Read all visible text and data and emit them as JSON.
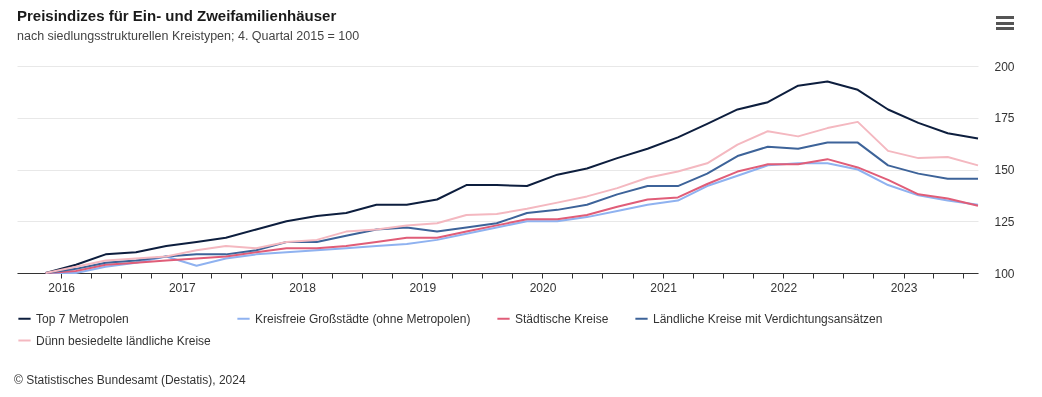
{
  "chart_data": {
    "type": "line",
    "title": "Preisindizes für Ein- und Zweifamilienhäuser",
    "subtitle": "nach siedlungsstrukturellen Kreistypen; 4. Quartal 2015 = 100",
    "x": [
      "2015-11-15",
      "2016-02-15",
      "2016-05-15",
      "2016-08-15",
      "2016-11-15",
      "2017-02-15",
      "2017-05-15",
      "2017-08-15",
      "2017-11-15",
      "2018-02-15",
      "2018-05-15",
      "2018-08-15",
      "2018-11-15",
      "2019-02-15",
      "2019-05-15",
      "2019-08-15",
      "2019-11-15",
      "2020-02-15",
      "2020-05-15",
      "2020-08-15",
      "2020-11-15",
      "2021-02-15",
      "2021-05-15",
      "2021-08-15",
      "2021-11-15",
      "2022-02-15",
      "2022-05-15",
      "2022-08-15",
      "2022-11-15",
      "2023-02-15",
      "2023-05-15",
      "2023-08-15"
    ],
    "series": [
      {
        "name": "Top 7 Metropolen",
        "color": "#0d1e3e",
        "values": [
          100,
          104,
          109,
          110,
          113,
          115,
          117,
          121,
          125,
          127.5,
          129,
          133,
          133,
          135.5,
          142.5,
          142.5,
          142,
          147.5,
          150.5,
          155.5,
          160,
          165.5,
          172,
          179,
          182.5,
          190.5,
          192.5,
          188.5,
          179,
          172.5,
          167.5,
          165
        ]
      },
      {
        "name": "Kreisfreie Großstädte (ohne Metropolen)",
        "color": "#8fb2f0",
        "values": [
          100,
          100,
          103,
          105,
          108,
          103.5,
          107,
          109,
          110,
          111,
          112,
          113,
          114,
          116,
          119,
          122,
          125,
          125,
          127,
          130,
          133,
          135,
          142,
          147,
          152,
          153,
          153,
          150,
          142.5,
          137.5,
          135,
          133
        ]
      },
      {
        "name": "Städtische Kreise",
        "color": "#e05d78",
        "values": [
          100,
          101,
          104,
          105,
          106,
          107,
          108,
          110,
          112,
          112,
          113,
          115,
          117,
          117,
          120,
          123,
          126,
          126,
          128,
          132,
          135.5,
          136.5,
          143,
          149,
          152.5,
          152.5,
          155,
          151,
          145,
          138,
          136,
          132.5
        ]
      },
      {
        "name": "Ländliche Kreise mit Verdichtungsansätzen",
        "color": "#3d6399",
        "values": [
          100,
          102,
          105,
          106,
          108,
          109,
          109,
          111,
          115,
          115,
          118,
          121,
          122,
          120,
          122,
          124,
          129,
          130.5,
          133,
          138,
          142,
          142,
          148,
          156.5,
          161,
          160,
          163,
          163,
          152,
          148,
          145.5,
          145.5
        ]
      },
      {
        "name": "Dünn besiedelte ländliche Kreise",
        "color": "#f4b8c0",
        "values": [
          100,
          103,
          106,
          107,
          108,
          111,
          113,
          112,
          115,
          116,
          120,
          121,
          123,
          124,
          128,
          128.5,
          131,
          134,
          137,
          141,
          146,
          149,
          153,
          162,
          168.5,
          166,
          170,
          173,
          159,
          155.5,
          156,
          152
        ]
      }
    ],
    "xlim": [
      "2015-08-20",
      "2023-08-15"
    ],
    "xticks": [
      "2016",
      {
        "value": "2016-04",
        "label": null
      },
      {
        "value": "2016-07",
        "label": null
      },
      {
        "value": "2016-10",
        "label": null
      },
      "2017",
      {
        "value": "2017-04",
        "label": null
      },
      {
        "value": "2017-07",
        "label": null
      },
      {
        "value": "2017-10",
        "label": null
      },
      "2018",
      {
        "value": "2018-04",
        "label": null
      },
      {
        "value": "2018-07",
        "label": null
      },
      {
        "value": "2018-10",
        "label": null
      },
      "2019",
      {
        "value": "2019-04",
        "label": null
      },
      {
        "value": "2019-07",
        "label": null
      },
      {
        "value": "2019-10",
        "label": null
      },
      "2020",
      {
        "value": "2020-04",
        "label": null
      },
      {
        "value": "2020-07",
        "label": null
      },
      {
        "value": "2020-10",
        "label": null
      },
      "2021",
      {
        "value": "2021-04",
        "label": null
      },
      {
        "value": "2021-07",
        "label": null
      },
      {
        "value": "2021-10",
        "label": null
      },
      "2022",
      {
        "value": "2022-04",
        "label": null
      },
      {
        "value": "2022-07",
        "label": null
      },
      {
        "value": "2022-10",
        "label": null
      },
      "2023",
      {
        "value": "2023-04",
        "label": null
      },
      {
        "value": "2023-07",
        "label": null
      }
    ],
    "ylim": [
      100,
      200
    ],
    "yticks": [
      100,
      125,
      150,
      175,
      200
    ],
    "grid": "y",
    "legend": "bottom",
    "line_style": "solid",
    "annotations": [
      "© Statistisches Bundesamt (Destatis), 2024"
    ]
  }
}
